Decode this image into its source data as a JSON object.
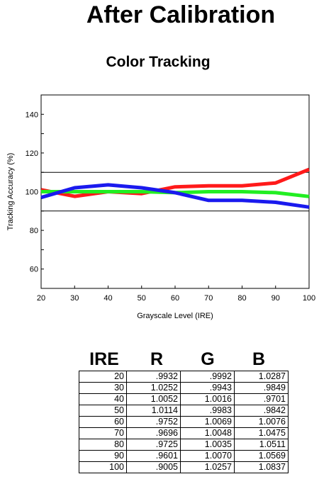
{
  "page": {
    "title": "After Calibration"
  },
  "chart_data": {
    "type": "line",
    "title": "Color Tracking",
    "xlabel": "Grayscale Level (IRE)",
    "ylabel": "Tracking Accuracy (%)",
    "x": [
      20,
      30,
      40,
      50,
      60,
      70,
      80,
      90,
      100
    ],
    "xlim": [
      20,
      100
    ],
    "ylim": [
      50,
      150
    ],
    "xticks": [
      "20",
      "30",
      "40",
      "50",
      "60",
      "70",
      "80",
      "90",
      "100"
    ],
    "yticks": [
      "60",
      "80",
      "100",
      "120",
      "140"
    ],
    "reference_lines": [
      110,
      90
    ],
    "grid": false,
    "series": [
      {
        "color": "#ff1a1a",
        "values": [
          101,
          97.6,
          100,
          99,
          102.5,
          103,
          103,
          104.5,
          111.5
        ]
      },
      {
        "color": "#22ee22",
        "values": [
          100,
          100,
          100,
          100,
          99.5,
          100,
          100,
          99.5,
          97.5
        ]
      },
      {
        "color": "#1a1aee",
        "values": [
          97,
          102,
          103.5,
          102,
          99.5,
          95.5,
          95.5,
          94.5,
          92
        ]
      }
    ]
  },
  "table": {
    "headers": [
      "IRE",
      "R",
      "G",
      "B"
    ],
    "rows": [
      [
        "20",
        ".9932",
        ".9992",
        "1.0287"
      ],
      [
        "30",
        "1.0252",
        ".9943",
        ".9849"
      ],
      [
        "40",
        "1.0052",
        "1.0016",
        ".9701"
      ],
      [
        "50",
        "1.0114",
        ".9983",
        ".9842"
      ],
      [
        "60",
        ".9752",
        "1.0069",
        "1.0076"
      ],
      [
        "70",
        ".9696",
        "1.0048",
        "1.0475"
      ],
      [
        "80",
        ".9725",
        "1.0035",
        "1.0511"
      ],
      [
        "90",
        ".9601",
        "1.0070",
        "1.0569"
      ],
      [
        "100",
        ".9005",
        "1.0257",
        "1.0837"
      ]
    ]
  }
}
